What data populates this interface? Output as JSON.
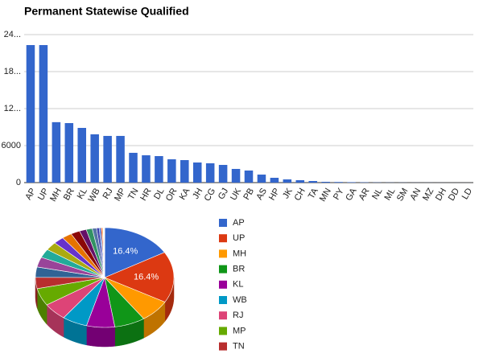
{
  "chart_data": [
    {
      "type": "bar",
      "title": "Permanent Statewise Qualified",
      "categories": [
        "AP",
        "UP",
        "MH",
        "BR",
        "KL",
        "WB",
        "RJ",
        "MP",
        "TN",
        "HR",
        "DL",
        "OR",
        "KA",
        "JH",
        "CG",
        "GJ",
        "UK",
        "PB",
        "AS",
        "HP",
        "JK",
        "CH",
        "TA",
        "MN",
        "PY",
        "GA",
        "AR",
        "NL",
        "ML",
        "SM",
        "AN",
        "MZ",
        "DH",
        "DD",
        "LD"
      ],
      "values": [
        22300,
        22300,
        9800,
        9650,
        8870,
        7830,
        7570,
        7570,
        4830,
        4430,
        4300,
        3780,
        3650,
        3260,
        3130,
        2870,
        2220,
        1960,
        1300,
        780,
        520,
        390,
        260,
        130,
        100,
        70,
        50,
        30,
        20,
        15,
        10,
        8,
        5,
        3,
        2
      ],
      "color": "#3366cc",
      "ylim": [
        0,
        24000
      ],
      "yticks": [
        0,
        6000,
        {
          "value": 12000,
          "label": "12..."
        },
        {
          "value": 18000,
          "label": "18..."
        },
        {
          "value": 24000,
          "label": "24..."
        }
      ],
      "grid": true
    },
    {
      "type": "pie",
      "values": [
        16.4,
        16.4,
        7.2,
        7.1,
        6.5,
        5.8,
        5.6,
        5.6,
        3.6,
        3.3,
        3.2,
        2.8,
        2.7,
        2.4,
        2.3,
        2.1,
        1.6,
        1.4,
        1.0,
        0.6,
        0.4,
        0.3,
        0.2,
        0.1,
        0.1,
        0.05,
        0.04,
        0.02,
        0.01,
        0.01,
        0.01,
        0.01,
        0,
        0,
        0
      ],
      "value_labels": [
        "16.4%",
        "16.4%",
        null,
        null,
        null,
        null,
        null,
        null,
        null,
        null,
        null,
        null,
        null,
        null,
        null,
        null,
        null,
        null,
        null,
        null,
        null,
        null,
        null,
        null,
        null,
        null,
        null,
        null,
        null,
        null,
        null,
        null,
        null,
        null,
        null
      ],
      "colors": [
        "#3366cc",
        "#dc3912",
        "#ff9900",
        "#109618",
        "#990099",
        "#0099c6",
        "#dd4477",
        "#66aa00",
        "#b82e2e",
        "#316395",
        "#994499",
        "#22aa99",
        "#aaaa11",
        "#6633cc",
        "#e67300",
        "#8b0707",
        "#651067",
        "#329262",
        "#5574a6",
        "#3b3eac"
      ],
      "legend": "right"
    }
  ]
}
